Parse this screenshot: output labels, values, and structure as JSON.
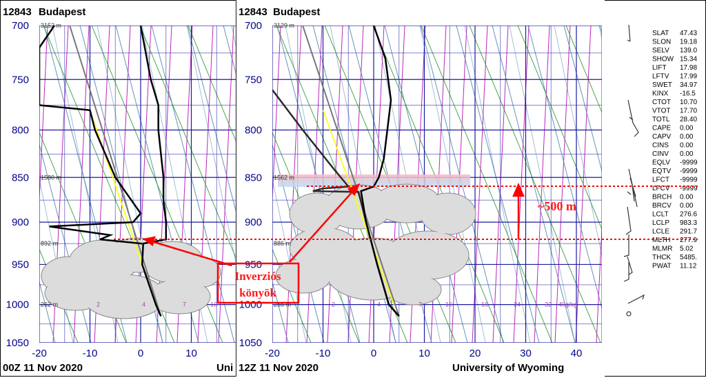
{
  "colors": {
    "isotherm": "#1a1aa0",
    "isobar": "#1a1aa0",
    "mixing_ratio": "#b000b0",
    "dry_adiabat": "#2a9a2a",
    "moist_adiabat": "#4a7fb0",
    "temperature": "#000000",
    "parcel": "#777777",
    "lcl_line": "#ffff00",
    "annotation": "#ff0000"
  },
  "chart_data": [
    {
      "type": "line",
      "title": "12843 Budapest",
      "station_id": "12843",
      "station": "Budapest",
      "footer_left": "00Z 11 Nov 2020",
      "footer_right": "Uni",
      "pressure_ticks": [
        "700",
        "750",
        "800",
        "850",
        "900",
        "950",
        "1000",
        "1050"
      ],
      "temperature_ticks": [
        "-20",
        "-10",
        "0",
        "10"
      ],
      "height_labels": [
        "3152 m",
        "1580 m",
        "892 m",
        "262 m"
      ],
      "mixing_ratio_labels": [
        "2",
        "4",
        "7",
        "10"
      ],
      "xlim": [
        -20,
        20
      ],
      "ylim": [
        1050,
        700
      ],
      "temperature": [
        [
          700,
          0
        ],
        [
          750,
          2
        ],
        [
          775,
          3.5
        ],
        [
          800,
          3.5
        ],
        [
          850,
          4.5
        ],
        [
          875,
          4.5
        ],
        [
          900,
          5
        ],
        [
          920,
          5
        ],
        [
          925,
          0.5
        ],
        [
          950,
          0.3
        ],
        [
          1000,
          3
        ],
        [
          1015,
          4
        ]
      ],
      "dewpoint": [
        [
          700,
          -17
        ],
        [
          720,
          -20
        ],
        [
          775,
          -20
        ],
        [
          780,
          -10
        ],
        [
          800,
          -9
        ],
        [
          850,
          -5
        ],
        [
          890,
          0
        ],
        [
          900,
          -1.5
        ],
        [
          905,
          -18
        ],
        [
          915,
          -6
        ],
        [
          920,
          -8
        ],
        [
          925,
          0.3
        ]
      ]
    },
    {
      "type": "line",
      "title": "12843 Budapest",
      "station_id": "12843",
      "station": "Budapest",
      "footer_left": "12Z 11 Nov 2020",
      "footer_right": "University of Wyoming",
      "pressure_ticks": [
        "700",
        "750",
        "800",
        "850",
        "900",
        "950",
        "1000",
        "1050"
      ],
      "temperature_ticks": [
        "-20",
        "-10",
        "0",
        "10",
        "20",
        "30",
        "40"
      ],
      "height_labels": [
        "3129 m",
        "1562 m",
        "886 m",
        "255 m"
      ],
      "mixing_ratio_labels": [
        "2",
        "4",
        "7",
        "10",
        "16",
        "24",
        "32",
        "40g/kg"
      ],
      "xlim": [
        -20,
        45
      ],
      "ylim": [
        1050,
        700
      ],
      "temperature": [
        [
          700,
          0
        ],
        [
          730,
          2.3
        ],
        [
          770,
          3.4
        ],
        [
          800,
          2.7
        ],
        [
          830,
          2
        ],
        [
          850,
          1
        ],
        [
          860,
          0
        ],
        [
          865,
          -2.5
        ],
        [
          900,
          -1.5
        ],
        [
          950,
          0.7
        ],
        [
          1000,
          3
        ],
        [
          1015,
          5
        ]
      ],
      "dewpoint": [
        [
          760,
          -20
        ],
        [
          800,
          -14
        ],
        [
          840,
          -8
        ],
        [
          860,
          -5
        ],
        [
          862,
          -10
        ],
        [
          865,
          -12
        ],
        [
          866,
          -3
        ],
        [
          900,
          -1.5
        ],
        [
          950,
          0.7
        ],
        [
          1000,
          3
        ],
        [
          1015,
          5
        ]
      ]
    }
  ],
  "stats": [
    {
      "k": "SLAT",
      "v": "47.43"
    },
    {
      "k": "SLON",
      "v": "19.18"
    },
    {
      "k": "SELV",
      "v": "139.0"
    },
    {
      "k": "SHOW",
      "v": "15.34"
    },
    {
      "k": "LIFT",
      "v": "17.98"
    },
    {
      "k": "LFTV",
      "v": "17.99"
    },
    {
      "k": "SWET",
      "v": "34.97"
    },
    {
      "k": "KINX",
      "v": "-16.5"
    },
    {
      "k": "CTOT",
      "v": "10.70"
    },
    {
      "k": "VTOT",
      "v": "17.70"
    },
    {
      "k": "TOTL",
      "v": "28.40"
    },
    {
      "k": "CAPE",
      "v": "0.00"
    },
    {
      "k": "CAPV",
      "v": "0.00"
    },
    {
      "k": "CINS",
      "v": "0.00"
    },
    {
      "k": "CINV",
      "v": "0.00"
    },
    {
      "k": "EQLV",
      "v": "-9999"
    },
    {
      "k": "EQTV",
      "v": "-9999"
    },
    {
      "k": "LFCT",
      "v": "-9999"
    },
    {
      "k": "LFCV",
      "v": "-9999"
    },
    {
      "k": "BRCH",
      "v": "0.00"
    },
    {
      "k": "BRCV",
      "v": "0.00"
    },
    {
      "k": "LCLT",
      "v": "276.6"
    },
    {
      "k": "LCLP",
      "v": "983.3"
    },
    {
      "k": "LCLE",
      "v": "291.7"
    },
    {
      "k": "MLTH",
      "v": "277.9"
    },
    {
      "k": "MLMR",
      "v": "5.02"
    },
    {
      "k": "THCK",
      "v": "5485."
    },
    {
      "k": "PWAT",
      "v": "11.12"
    }
  ],
  "annotations": {
    "box_line1": "Inverziós",
    "box_line2": "könyök",
    "height_diff": "~500 m"
  }
}
